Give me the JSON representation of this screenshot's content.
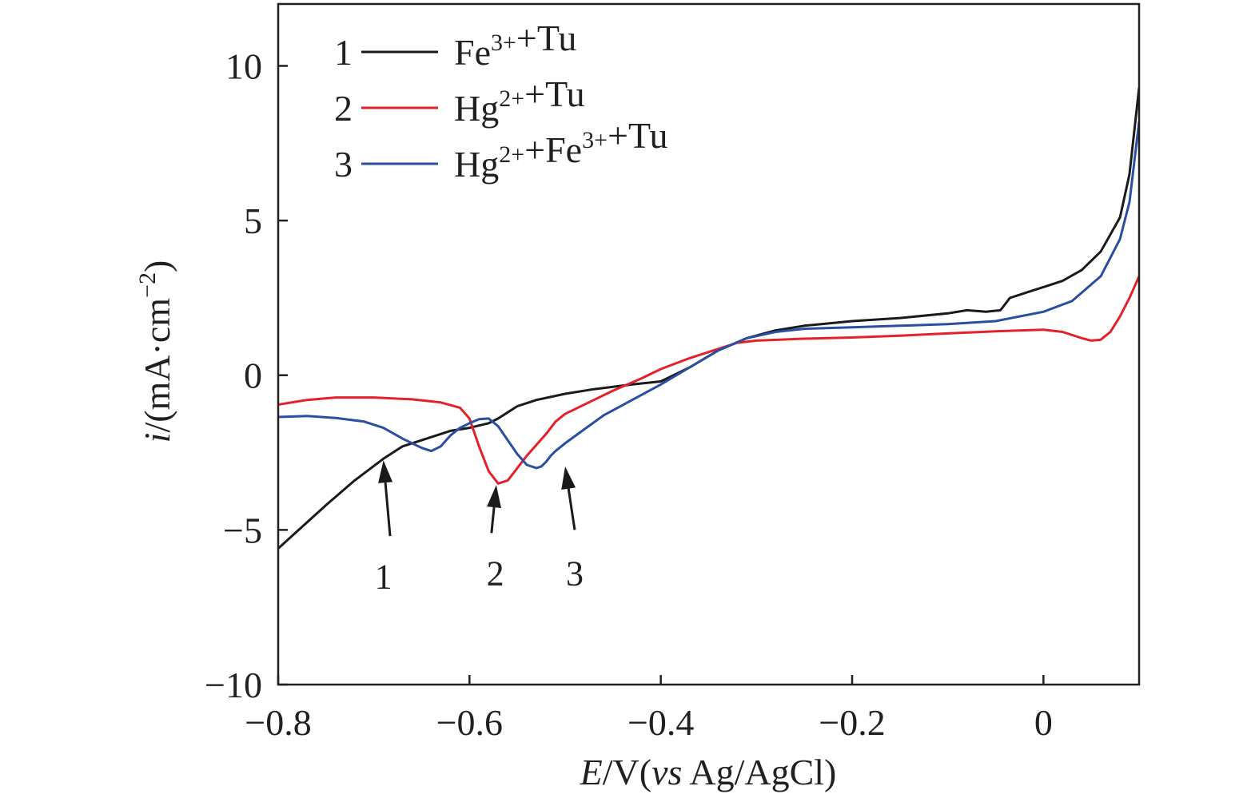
{
  "chart_data": {
    "type": "line",
    "xlabel": {
      "var": "E",
      "rest": "/V(",
      "vs": "vs",
      "ref": " Ag/AgCl)"
    },
    "ylabel": {
      "var": "i",
      "rest": "/(mA·cm",
      "sup": "−2",
      "close": ")"
    },
    "xlim": [
      -0.8,
      0.1
    ],
    "ylim": [
      -10,
      12
    ],
    "xticks": [
      {
        "value": -0.8,
        "label": "−0.8"
      },
      {
        "value": -0.6,
        "label": "−0.6"
      },
      {
        "value": -0.4,
        "label": "−0.4"
      },
      {
        "value": -0.2,
        "label": "−0.2"
      },
      {
        "value": 0,
        "label": "0"
      }
    ],
    "yticks": [
      {
        "value": -10,
        "label": "−10"
      },
      {
        "value": -5,
        "label": "−5"
      },
      {
        "value": 0,
        "label": "0"
      },
      {
        "value": 5,
        "label": "5"
      },
      {
        "value": 10,
        "label": "10"
      }
    ],
    "grid": false,
    "legend_position": "top-left",
    "series": [
      {
        "number": "1",
        "name_parts": [
          {
            "t": "Fe"
          },
          {
            "t": "3+",
            "sup": true
          },
          {
            "t": "+Tu"
          }
        ],
        "color": "#1a1a1a",
        "x": [
          -0.8,
          -0.75,
          -0.72,
          -0.69,
          -0.67,
          -0.65,
          -0.62,
          -0.6,
          -0.58,
          -0.57,
          -0.55,
          -0.53,
          -0.5,
          -0.47,
          -0.43,
          -0.4,
          -0.37,
          -0.34,
          -0.31,
          -0.28,
          -0.25,
          -0.2,
          -0.15,
          -0.1,
          -0.08,
          -0.06,
          -0.045,
          -0.04,
          -0.035,
          -0.03,
          -0.02,
          -0.01,
          0,
          0.02,
          0.04,
          0.06,
          0.08,
          0.09,
          0.1
        ],
        "y": [
          -5.6,
          -4.2,
          -3.4,
          -2.7,
          -2.3,
          -2.1,
          -1.8,
          -1.7,
          -1.55,
          -1.4,
          -1.0,
          -0.8,
          -0.6,
          -0.45,
          -0.3,
          -0.2,
          0.25,
          0.8,
          1.2,
          1.45,
          1.6,
          1.75,
          1.85,
          2.0,
          2.1,
          2.05,
          2.1,
          2.3,
          2.5,
          2.55,
          2.65,
          2.75,
          2.85,
          3.05,
          3.4,
          4.0,
          5.1,
          6.5,
          9.3
        ]
      },
      {
        "number": "2",
        "name_parts": [
          {
            "t": "Hg"
          },
          {
            "t": "2+",
            "sup": true
          },
          {
            "t": "+Tu"
          }
        ],
        "color": "#e2222a",
        "x": [
          -0.8,
          -0.77,
          -0.74,
          -0.7,
          -0.66,
          -0.63,
          -0.61,
          -0.6,
          -0.59,
          -0.58,
          -0.57,
          -0.56,
          -0.55,
          -0.54,
          -0.53,
          -0.52,
          -0.51,
          -0.5,
          -0.49,
          -0.47,
          -0.45,
          -0.42,
          -0.4,
          -0.37,
          -0.34,
          -0.32,
          -0.3,
          -0.25,
          -0.2,
          -0.15,
          -0.1,
          -0.05,
          0,
          0.02,
          0.04,
          0.05,
          0.06,
          0.07,
          0.08,
          0.09,
          0.1
        ],
        "y": [
          -0.95,
          -0.8,
          -0.72,
          -0.72,
          -0.78,
          -0.88,
          -1.05,
          -1.4,
          -2.3,
          -3.1,
          -3.5,
          -3.4,
          -3.0,
          -2.6,
          -2.25,
          -1.9,
          -1.5,
          -1.25,
          -1.1,
          -0.8,
          -0.5,
          -0.1,
          0.2,
          0.55,
          0.85,
          1.05,
          1.12,
          1.18,
          1.22,
          1.28,
          1.35,
          1.42,
          1.47,
          1.4,
          1.2,
          1.12,
          1.15,
          1.4,
          1.9,
          2.5,
          3.2
        ]
      },
      {
        "number": "3",
        "name_parts": [
          {
            "t": "Hg"
          },
          {
            "t": "2+",
            "sup": true
          },
          {
            "t": "+Fe"
          },
          {
            "t": "3+",
            "sup": true
          },
          {
            "t": "+Tu"
          }
        ],
        "color": "#2a4ea2",
        "x": [
          -0.8,
          -0.77,
          -0.74,
          -0.71,
          -0.69,
          -0.67,
          -0.66,
          -0.65,
          -0.64,
          -0.63,
          -0.62,
          -0.61,
          -0.6,
          -0.59,
          -0.58,
          -0.57,
          -0.56,
          -0.55,
          -0.54,
          -0.53,
          -0.525,
          -0.52,
          -0.515,
          -0.51,
          -0.5,
          -0.48,
          -0.46,
          -0.43,
          -0.4,
          -0.37,
          -0.34,
          -0.31,
          -0.28,
          -0.25,
          -0.2,
          -0.15,
          -0.1,
          -0.05,
          0,
          0.03,
          0.06,
          0.08,
          0.09,
          0.1
        ],
        "y": [
          -1.35,
          -1.32,
          -1.38,
          -1.5,
          -1.7,
          -2.05,
          -2.2,
          -2.35,
          -2.45,
          -2.3,
          -1.95,
          -1.7,
          -1.55,
          -1.42,
          -1.4,
          -1.65,
          -2.1,
          -2.55,
          -2.9,
          -3.0,
          -2.95,
          -2.8,
          -2.6,
          -2.45,
          -2.2,
          -1.75,
          -1.3,
          -0.8,
          -0.3,
          0.25,
          0.8,
          1.2,
          1.4,
          1.5,
          1.55,
          1.6,
          1.65,
          1.75,
          2.05,
          2.4,
          3.2,
          4.4,
          5.6,
          8.2
        ]
      }
    ],
    "annotations": [
      {
        "label": "1",
        "text_at": [
          -0.69,
          -6.5
        ],
        "arrow_from": [
          -0.683,
          -5.2
        ],
        "arrow_to": [
          -0.69,
          -2.75
        ]
      },
      {
        "label": "2",
        "text_at": [
          -0.573,
          -6.4
        ],
        "arrow_from": [
          -0.577,
          -5.1
        ],
        "arrow_to": [
          -0.572,
          -3.55
        ]
      },
      {
        "label": "3",
        "text_at": [
          -0.49,
          -6.4
        ],
        "arrow_from": [
          -0.49,
          -5.0
        ],
        "arrow_to": [
          -0.5,
          -2.95
        ]
      }
    ]
  }
}
